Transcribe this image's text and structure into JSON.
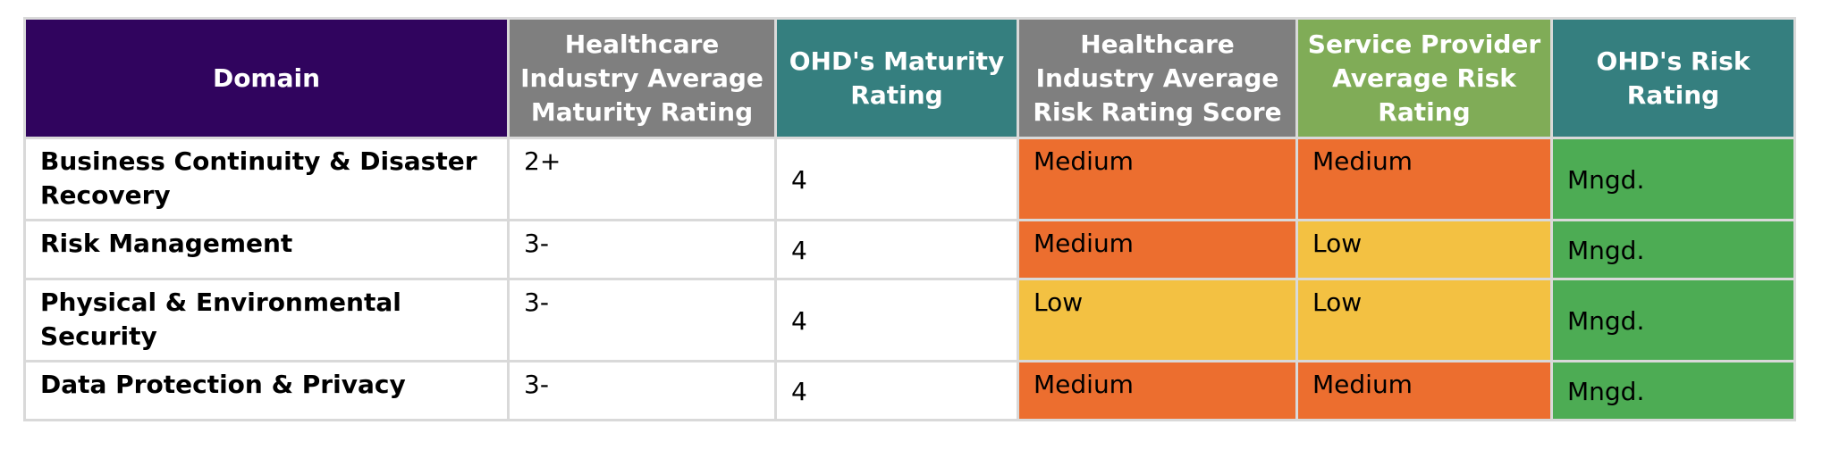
{
  "colors": {
    "header_purple": "#30045e",
    "header_gray": "#7f7f7f",
    "header_teal": "#357f7f",
    "header_green": "#80ac57",
    "risk_medium": "#ec6e2f",
    "risk_low": "#f3c142",
    "risk_managed": "#4dac54",
    "border": "#d9d9d9"
  },
  "headers": [
    {
      "label": "Domain",
      "color": "#30045e"
    },
    {
      "label": "Healthcare Industry Average Maturity Rating",
      "color": "#7f7f7f"
    },
    {
      "label": "OHD's Maturity Rating",
      "color": "#357f7f"
    },
    {
      "label": "Healthcare Industry Average Risk Rating Score",
      "color": "#7f7f7f"
    },
    {
      "label": "Service Provider Average Risk Rating",
      "color": "#80ac57"
    },
    {
      "label": "OHD's Risk Rating",
      "color": "#357f7f"
    }
  ],
  "rows": [
    {
      "domain": "Business Continuity & Disaster Recovery",
      "industry_maturity": "2+",
      "ohd_maturity": "4",
      "industry_risk": {
        "label": "Medium",
        "color": "#ec6e2f"
      },
      "provider_risk": {
        "label": "Medium",
        "color": "#ec6e2f"
      },
      "ohd_risk": {
        "label": "Mngd.",
        "color": "#4dac54"
      }
    },
    {
      "domain": "Risk Management",
      "industry_maturity": "3-",
      "ohd_maturity": "4",
      "industry_risk": {
        "label": "Medium",
        "color": "#ec6e2f"
      },
      "provider_risk": {
        "label": "Low",
        "color": "#f3c142"
      },
      "ohd_risk": {
        "label": "Mngd.",
        "color": "#4dac54"
      }
    },
    {
      "domain": "Physical & Environmental Security",
      "industry_maturity": "3-",
      "ohd_maturity": "4",
      "industry_risk": {
        "label": "Low",
        "color": "#f3c142"
      },
      "provider_risk": {
        "label": "Low",
        "color": "#f3c142"
      },
      "ohd_risk": {
        "label": "Mngd.",
        "color": "#4dac54"
      }
    },
    {
      "domain": "Data Protection & Privacy",
      "industry_maturity": "3-",
      "ohd_maturity": "4",
      "industry_risk": {
        "label": "Medium",
        "color": "#ec6e2f"
      },
      "provider_risk": {
        "label": "Medium",
        "color": "#ec6e2f"
      },
      "ohd_risk": {
        "label": "Mngd.",
        "color": "#4dac54"
      }
    }
  ]
}
